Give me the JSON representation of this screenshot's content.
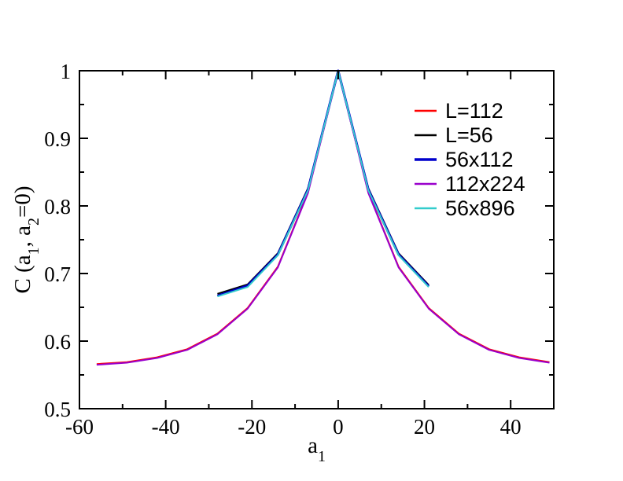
{
  "chart_data": {
    "type": "line",
    "xlabel": {
      "main": "a",
      "sub": "1"
    },
    "ylabel": {
      "p1": "C (a",
      "s1": "1",
      "p2": ", a",
      "s2": "2",
      "p3": "=0)"
    },
    "xlim": [
      -60,
      50
    ],
    "ylim": [
      0.5,
      1.0
    ],
    "x_ticks": [
      -60,
      -40,
      -20,
      0,
      20,
      40
    ],
    "x_tick_labels": [
      "-60",
      "-40",
      "-20",
      "0",
      "20",
      "40"
    ],
    "y_ticks": [
      0.5,
      0.6,
      0.7,
      0.8,
      0.9,
      1.0
    ],
    "y_tick_labels": [
      "0.5",
      "0.6",
      "0.7",
      "0.8",
      "0.9",
      "1"
    ],
    "legend_position": "top-right",
    "series": [
      {
        "name": "L=112",
        "color": "#ff0000",
        "width": 2,
        "x": [
          -56,
          -49,
          -42,
          -35,
          -28,
          -21,
          -14,
          -7,
          0,
          7,
          14,
          21,
          28,
          35,
          42,
          49
        ],
        "y": [
          0.566,
          0.569,
          0.576,
          0.588,
          0.611,
          0.649,
          0.71,
          0.82,
          1.0,
          0.82,
          0.71,
          0.649,
          0.611,
          0.588,
          0.576,
          0.569
        ]
      },
      {
        "name": "L=56",
        "color": "#000000",
        "width": 2,
        "x": [
          -28,
          -21,
          -14,
          -7,
          0,
          7,
          14,
          21
        ],
        "y": [
          0.67,
          0.684,
          0.73,
          0.826,
          1.0,
          0.826,
          0.73,
          0.683
        ]
      },
      {
        "name": "56x112",
        "color": "#0000cc",
        "width": 3,
        "x": [
          -28,
          -21,
          -14,
          -7,
          0,
          7,
          14,
          21
        ],
        "y": [
          0.667,
          0.682,
          0.728,
          0.824,
          1.0,
          0.824,
          0.728,
          0.681
        ]
      },
      {
        "name": "112x224",
        "color": "#9900cc",
        "width": 2,
        "x": [
          -56,
          -49,
          -42,
          -35,
          -28,
          -21,
          -14,
          -7,
          0,
          7,
          14,
          21,
          28,
          35,
          42,
          49
        ],
        "y": [
          0.565,
          0.568,
          0.575,
          0.587,
          0.61,
          0.648,
          0.709,
          0.819,
          1.0,
          0.819,
          0.709,
          0.648,
          0.61,
          0.587,
          0.575,
          0.568
        ]
      },
      {
        "name": "56x896",
        "color": "#33cccc",
        "width": 2,
        "x": [
          -28,
          -21,
          -14,
          -7,
          0,
          7,
          14,
          21
        ],
        "y": [
          0.666,
          0.68,
          0.727,
          0.823,
          1.0,
          0.823,
          0.727,
          0.68
        ]
      }
    ]
  }
}
